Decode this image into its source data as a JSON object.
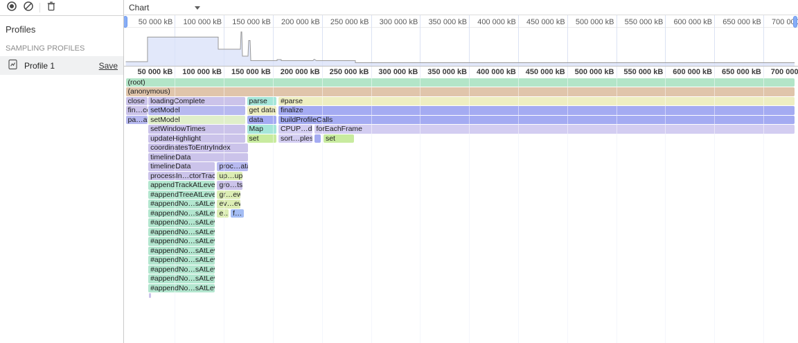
{
  "toolbar": {
    "chart_select_value": "Chart",
    "icons": {
      "record_icon": "filled-circle-in-ring",
      "clear_icon": "circle-with-slash",
      "delete_icon": "trash-can",
      "caret_icon": "down-triangle",
      "profile_icon": "document-with-chart"
    }
  },
  "sidebar": {
    "title": "Profiles",
    "section_label": "SAMPLING PROFILES",
    "profiles": [
      {
        "name": "Profile 1",
        "action_label": "Save"
      }
    ]
  },
  "chart_data": [
    {
      "type": "area",
      "title": "memory-size-overview",
      "x_unit": "kB",
      "x_range_kb": [
        0,
        682000
      ],
      "x_ticks": [
        "50 000 kB",
        "100 000 kB",
        "150 000 kB",
        "200 000 kB",
        "250 000 kB",
        "300 000 kB",
        "350 000 kB",
        "400 000 kB",
        "450 000 kB",
        "500 000 kB",
        "550 000 kB",
        "600 000 kB",
        "650 000 kB",
        "700 000 kB"
      ],
      "grid": true,
      "fill": "#d8e0f8",
      "stroke": "#999999",
      "points_kb_heightfrac": [
        [
          0,
          0.109
        ],
        [
          22200,
          0.109
        ],
        [
          22200,
          0.755
        ],
        [
          94300,
          0.755
        ],
        [
          94300,
          0.436
        ],
        [
          116900,
          0.436
        ],
        [
          117600,
          0.89
        ],
        [
          118300,
          0.89
        ],
        [
          119000,
          0.255
        ],
        [
          124650,
          0.255
        ],
        [
          125350,
          0.664
        ],
        [
          126800,
          0.664
        ],
        [
          127500,
          0.136
        ],
        [
          154300,
          0.136
        ],
        [
          154300,
          0.164
        ],
        [
          158500,
          0.164
        ],
        [
          158500,
          0.136
        ],
        [
          190800,
          0.136
        ],
        [
          192200,
          0.173
        ],
        [
          194400,
          0.136
        ],
        [
          234100,
          0.136
        ],
        [
          234100,
          0.082
        ],
        [
          681900,
          0.082
        ]
      ]
    },
    {
      "type": "flame",
      "unit": "kB",
      "palette": {
        "green": "#b3e5c8",
        "mint": "#b3e6cf",
        "tan": "#e0c5ab",
        "lav": "#cbc3ea",
        "blav": "#b7b9f0",
        "teal": "#a6e6d9",
        "yellow": "#eeeec2",
        "blue": "#a4abf2",
        "lilac": "#d3cdf1",
        "lime": "#c8eb9f",
        "plime": "#dcedb4",
        "pgreen": "#e0efca",
        "lblue": "#a4bdf4"
      },
      "rows": [
        [
          [
            "(root)",
            0,
            682000,
            "green"
          ]
        ],
        [
          [
            "(anonymous)",
            0,
            682000,
            "tan"
          ]
        ],
        [
          [
            "close",
            0,
            21900,
            "lav"
          ],
          [
            "loadingComplete",
            23000,
            121800,
            "lav"
          ],
          [
            "parse",
            123600,
            153900,
            "teal"
          ],
          [
            "#parse",
            155700,
            682000,
            "yellow"
          ]
        ],
        [
          [
            "fin…ce",
            0,
            21900,
            "lav"
          ],
          [
            "setModel",
            23000,
            121800,
            "blav"
          ],
          [
            "get data",
            123600,
            153900,
            "yellow"
          ],
          [
            "finalize",
            155700,
            682000,
            "blue"
          ]
        ],
        [
          [
            "pa…at",
            0,
            21900,
            "blav"
          ],
          [
            "setModel",
            23000,
            121800,
            "pgreen"
          ],
          [
            "data",
            123600,
            153900,
            "blue"
          ],
          [
            "buildProfileCalls",
            155700,
            682000,
            "blue"
          ]
        ],
        [
          [
            "setWindowTimes",
            23000,
            121800,
            "lav"
          ],
          [
            "Map",
            123600,
            153900,
            "teal"
          ],
          [
            "CPUP…del",
            155700,
            190000,
            "lilac"
          ],
          [
            "forEachFrame",
            192100,
            682000,
            "lilac"
          ]
        ],
        [
          [
            "updateHighlight",
            23000,
            121800,
            "lav"
          ],
          [
            "set",
            123600,
            153900,
            "lime"
          ],
          [
            "sort…ples",
            155700,
            190000,
            "lilac"
          ],
          [
            "",
            192100,
            199100,
            "blue"
          ],
          [
            "set",
            201600,
            232700,
            "lime"
          ]
        ],
        [
          [
            "coordinatesToEntryIndex",
            23000,
            124600,
            "lav"
          ]
        ],
        [
          [
            "timelineData",
            23000,
            124600,
            "lav"
          ]
        ],
        [
          [
            "timelineData",
            23000,
            91100,
            "lav"
          ],
          [
            "proc…ata",
            93200,
            124600,
            "blav"
          ]
        ],
        [
          [
            "processIn…ctorTrace",
            23000,
            91100,
            "lav"
          ],
          [
            "up…up",
            93200,
            119000,
            "plime"
          ]
        ],
        [
          [
            "appendTrackAtLevel",
            23000,
            91100,
            "mint"
          ],
          [
            "gro…ts",
            93200,
            119000,
            "lav"
          ]
        ],
        [
          [
            "#appendTreeAtLevel",
            23000,
            91100,
            "mint"
          ],
          [
            "gr…ew",
            93200,
            116900,
            "plime"
          ]
        ],
        [
          [
            "#appendNo…sAtLevel",
            23000,
            91100,
            "mint"
          ],
          [
            "ev…ew",
            93200,
            116900,
            "plime"
          ]
        ],
        [
          [
            "#appendNo…sAtLevel",
            23000,
            91100,
            "mint"
          ],
          [
            "e…",
            93200,
            104900,
            "plime"
          ],
          [
            "f…",
            107000,
            120400,
            "lblue"
          ]
        ],
        [
          [
            "#appendNo…sAtLevel",
            23000,
            91100,
            "mint"
          ]
        ],
        [
          [
            "#appendNo…sAtLevel",
            23000,
            91100,
            "mint"
          ]
        ],
        [
          [
            "#appendNo…sAtLevel",
            23000,
            91100,
            "mint"
          ]
        ],
        [
          [
            "#appendNo…sAtLevel",
            23000,
            91100,
            "mint"
          ]
        ],
        [
          [
            "#appendNo…sAtLevel",
            23000,
            91100,
            "mint"
          ]
        ],
        [
          [
            "#appendNo…sAtLevel",
            23000,
            91100,
            "mint"
          ]
        ],
        [
          [
            "#appendNo…sAtLevel",
            23000,
            91100,
            "mint"
          ]
        ],
        [
          [
            "#appendNo…sAtLevel",
            23000,
            91100,
            "mint"
          ]
        ],
        [
          [
            "",
            23700,
            25000,
            "lav",
            7
          ]
        ]
      ]
    }
  ]
}
